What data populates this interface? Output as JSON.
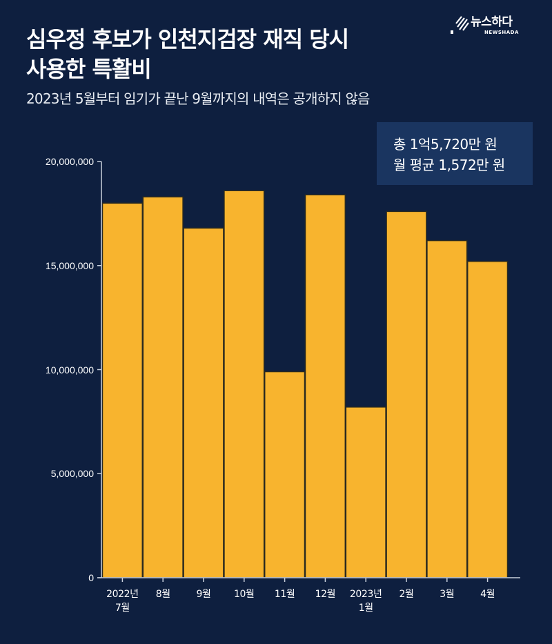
{
  "header": {
    "title_line1": "심우정 후보가 인천지검장 재직 당시",
    "title_line2": "사용한 특활비",
    "subtitle": "2023년 5월부터 임기가 끝난 9월까지의 내역은 공개하지 않음"
  },
  "logo": {
    "name": "뉴스하다",
    "sub": "NEWSHADA",
    "icon": "slash-stripes-icon"
  },
  "summary": {
    "line1": "총 1억5,720만 원",
    "line2": "월 평균 1,572만 원"
  },
  "colors": {
    "background": "#0E1F3F",
    "bar": "#F8B42E",
    "bar_border": "#2B2A20",
    "summary_box": "#1A3560",
    "axis": "#C9D0DC",
    "text": "#FFFFFF"
  },
  "chart_data": {
    "type": "bar",
    "title": "심우정 후보가 인천지검장 재직 당시 사용한 특활비",
    "subtitle": "2023년 5월부터 임기가 끝난 9월까지의 내역은 공개하지 않음",
    "xlabel": "",
    "ylabel": "",
    "categories": [
      "2022년 7월",
      "8월",
      "9월",
      "10월",
      "11월",
      "12월",
      "2023년 1월",
      "2월",
      "3월",
      "4월"
    ],
    "category_lines": [
      [
        "2022년",
        "7월"
      ],
      [
        "8월"
      ],
      [
        "9월"
      ],
      [
        "10월"
      ],
      [
        "11월"
      ],
      [
        "12월"
      ],
      [
        "2023년",
        "1월"
      ],
      [
        "2월"
      ],
      [
        "3월"
      ],
      [
        "4월"
      ]
    ],
    "values": [
      18000000,
      18300000,
      16800000,
      18600000,
      9900000,
      18400000,
      8200000,
      17600000,
      16200000,
      15200000
    ],
    "ylim": [
      0,
      20000000
    ],
    "yticks": [
      0,
      5000000,
      10000000,
      15000000,
      20000000
    ],
    "ytick_labels": [
      "0",
      "5,000,000",
      "10,000,000",
      "15,000,000",
      "20,000,000"
    ],
    "grid": false,
    "legend": null,
    "annotations": [
      "총 1억5,720만 원",
      "월 평균 1,572만 원"
    ]
  }
}
